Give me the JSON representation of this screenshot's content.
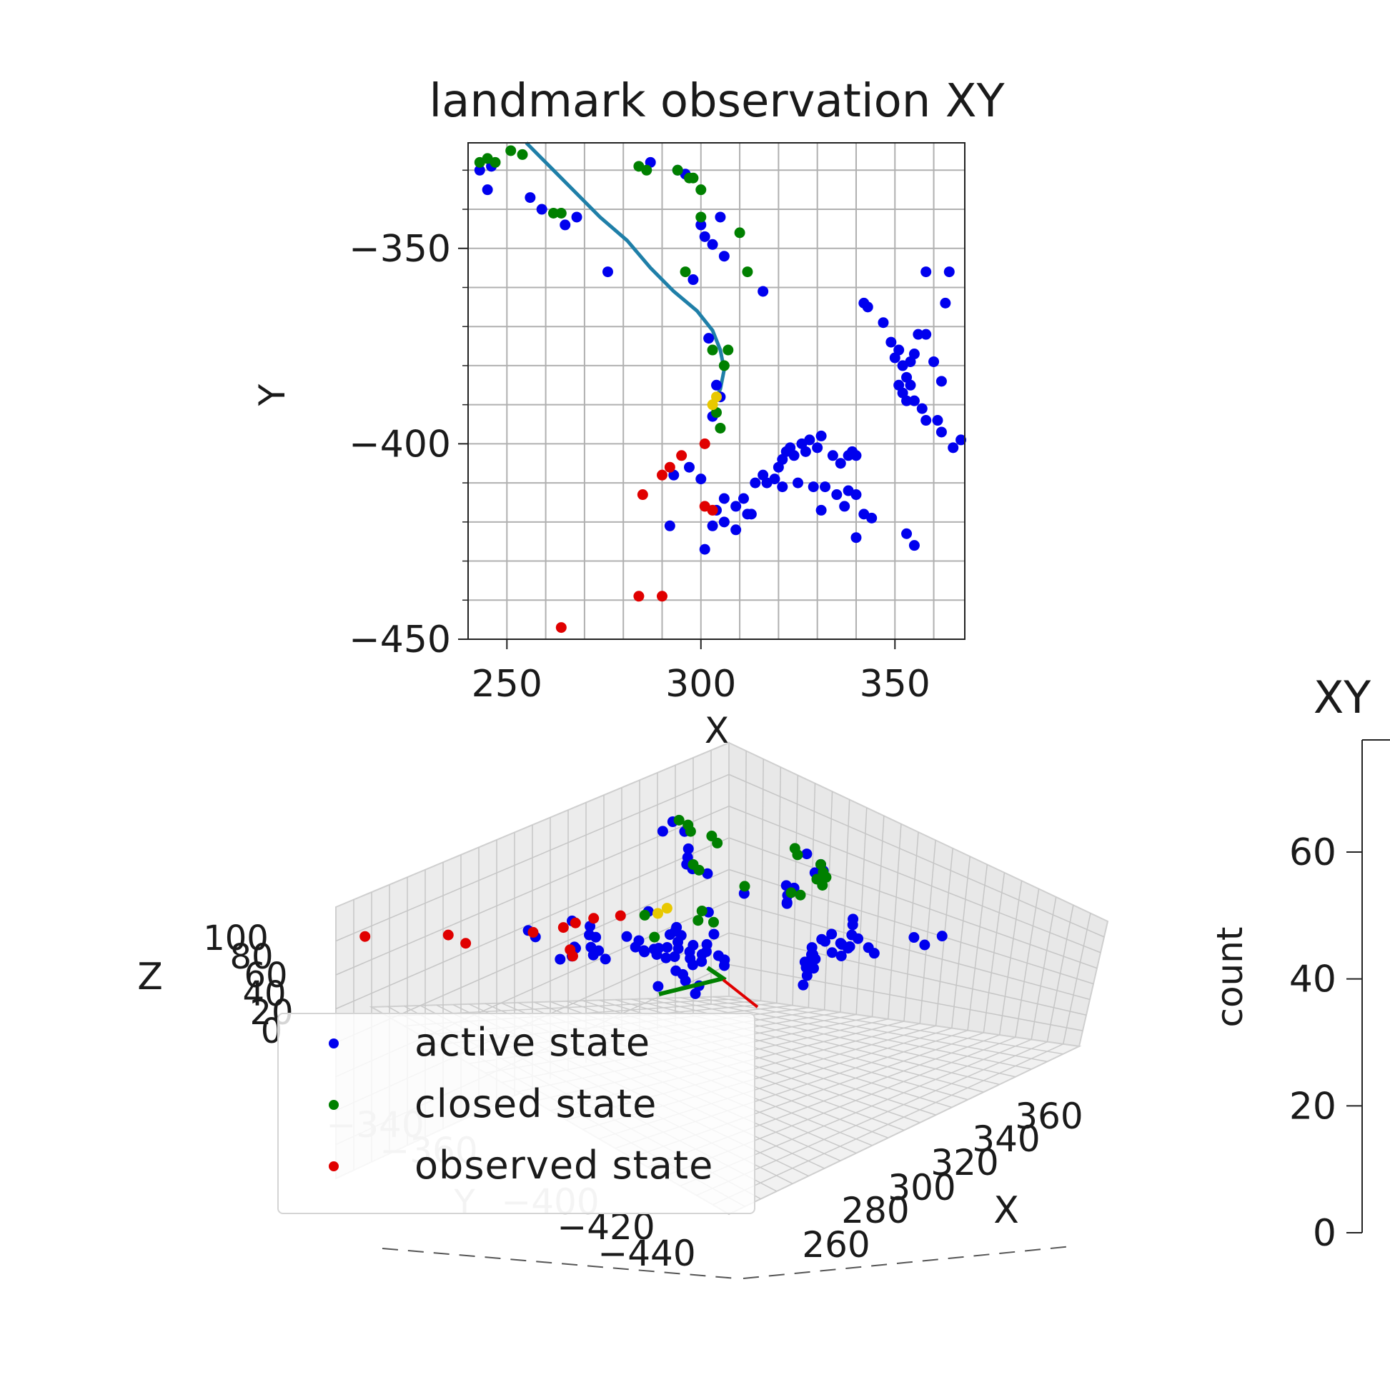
{
  "colors": {
    "active": "#0000ee",
    "closed": "#008000",
    "observed": "#e00000",
    "current": "#e8c800",
    "trajectory": "#1f7fa8",
    "grid": "#b0b0b0"
  },
  "chart_data": [
    {
      "type": "scatter",
      "title": "landmark observation XY",
      "xlabel": "X",
      "ylabel": "Y",
      "xlim": [
        240,
        368
      ],
      "ylim": [
        -450,
        -323
      ],
      "xticks": [
        250,
        300,
        350
      ],
      "yticks": [
        -350,
        -400,
        -450
      ],
      "xtick_labels": [
        "250",
        "300",
        "350"
      ],
      "ytick_labels": [
        "−350",
        "−400",
        "−450"
      ],
      "grid": true,
      "series": [
        {
          "name": "active state",
          "color_key": "active",
          "points": [
            [
              243,
              -330
            ],
            [
              245,
              -335
            ],
            [
              246,
              -329
            ],
            [
              256,
              -337
            ],
            [
              259,
              -340
            ],
            [
              265,
              -344
            ],
            [
              268,
              -342
            ],
            [
              276,
              -356
            ],
            [
              287,
              -328
            ],
            [
              294,
              -330
            ],
            [
              296,
              -331
            ],
            [
              300,
              -344
            ],
            [
              301,
              -347
            ],
            [
              303,
              -349
            ],
            [
              305,
              -342
            ],
            [
              306,
              -352
            ],
            [
              316,
              -361
            ],
            [
              298,
              -358
            ],
            [
              302,
              -373
            ],
            [
              304,
              -385
            ],
            [
              305,
              -388
            ],
            [
              303,
              -393
            ],
            [
              342,
              -364
            ],
            [
              343,
              -365
            ],
            [
              347,
              -369
            ],
            [
              349,
              -374
            ],
            [
              350,
              -378
            ],
            [
              351,
              -376
            ],
            [
              352,
              -380
            ],
            [
              353,
              -383
            ],
            [
              354,
              -379
            ],
            [
              355,
              -377
            ],
            [
              356,
              -372
            ],
            [
              358,
              -372
            ],
            [
              358,
              -356
            ],
            [
              360,
              -379
            ],
            [
              362,
              -384
            ],
            [
              363,
              -364
            ],
            [
              364,
              -356
            ],
            [
              351,
              -385
            ],
            [
              352,
              -387
            ],
            [
              353,
              -389
            ],
            [
              354,
              -385
            ],
            [
              355,
              -389
            ],
            [
              357,
              -391
            ],
            [
              358,
              -394
            ],
            [
              361,
              -394
            ],
            [
              362,
              -397
            ],
            [
              365,
              -401
            ],
            [
              367,
              -399
            ],
            [
              293,
              -408
            ],
            [
              297,
              -406
            ],
            [
              300,
              -409
            ],
            [
              306,
              -414
            ],
            [
              309,
              -416
            ],
            [
              311,
              -414
            ],
            [
              312,
              -418
            ],
            [
              314,
              -410
            ],
            [
              316,
              -408
            ],
            [
              317,
              -410
            ],
            [
              319,
              -409
            ],
            [
              320,
              -406
            ],
            [
              321,
              -404
            ],
            [
              322,
              -402
            ],
            [
              323,
              -401
            ],
            [
              324,
              -403
            ],
            [
              326,
              -400
            ],
            [
              327,
              -402
            ],
            [
              328,
              -399
            ],
            [
              330,
              -401
            ],
            [
              331,
              -398
            ],
            [
              334,
              -403
            ],
            [
              336,
              -405
            ],
            [
              338,
              -403
            ],
            [
              339,
              -402
            ],
            [
              340,
              -403
            ],
            [
              332,
              -411
            ],
            [
              335,
              -413
            ],
            [
              337,
              -416
            ],
            [
              338,
              -412
            ],
            [
              340,
              -413
            ],
            [
              342,
              -418
            ],
            [
              344,
              -419
            ],
            [
              340,
              -424
            ],
            [
              331,
              -417
            ],
            [
              329,
              -411
            ],
            [
              325,
              -410
            ],
            [
              321,
              -411
            ],
            [
              304,
              -417
            ],
            [
              306,
              -420
            ],
            [
              303,
              -421
            ],
            [
              301,
              -427
            ],
            [
              292,
              -421
            ],
            [
              309,
              -422
            ],
            [
              313,
              -418
            ],
            [
              353,
              -423
            ],
            [
              355,
              -426
            ]
          ]
        },
        {
          "name": "closed state",
          "color_key": "closed",
          "points": [
            [
              243,
              -328
            ],
            [
              245,
              -327
            ],
            [
              247,
              -328
            ],
            [
              251,
              -325
            ],
            [
              254,
              -326
            ],
            [
              262,
              -341
            ],
            [
              264,
              -341
            ],
            [
              284,
              -329
            ],
            [
              286,
              -330
            ],
            [
              294,
              -330
            ],
            [
              297,
              -332
            ],
            [
              298,
              -332
            ],
            [
              300,
              -335
            ],
            [
              300,
              -342
            ],
            [
              310,
              -346
            ],
            [
              312,
              -356
            ],
            [
              296,
              -356
            ],
            [
              303,
              -376
            ],
            [
              306,
              -380
            ],
            [
              307,
              -376
            ],
            [
              304,
              -392
            ],
            [
              305,
              -396
            ]
          ]
        },
        {
          "name": "observed state",
          "color_key": "observed",
          "points": [
            [
              301,
              -400
            ],
            [
              295,
              -403
            ],
            [
              292,
              -406
            ],
            [
              290,
              -408
            ],
            [
              285,
              -413
            ],
            [
              301,
              -416
            ],
            [
              303,
              -417
            ],
            [
              284,
              -439
            ],
            [
              290,
              -439
            ],
            [
              264,
              -447
            ]
          ]
        },
        {
          "name": "",
          "color_key": "current",
          "points": [
            [
              304,
              -388
            ],
            [
              303,
              -390
            ]
          ]
        }
      ],
      "trajectory": [
        [
          255,
          -323
        ],
        [
          262,
          -330
        ],
        [
          268,
          -336
        ],
        [
          274,
          -342
        ],
        [
          281,
          -348
        ],
        [
          287,
          -355
        ],
        [
          293,
          -361
        ],
        [
          299,
          -366
        ],
        [
          303,
          -371
        ],
        [
          305,
          -376
        ],
        [
          306,
          -381
        ],
        [
          305,
          -386
        ],
        [
          303,
          -390
        ]
      ]
    },
    {
      "type": "scatter",
      "title": "",
      "xlabel": "X",
      "ylabel": "Y",
      "zlabel": "Z",
      "x_tick_labels": [
        "260",
        "280",
        "300",
        "320",
        "340",
        "360"
      ],
      "y_tick_labels": [
        "−340",
        "−360",
        "−400",
        "−420",
        "−440"
      ],
      "z_tick_labels": [
        "100",
        "80",
        "60",
        "40",
        "20",
        "0"
      ],
      "grid": true,
      "legend": {
        "placement": "lower-left",
        "entries": [
          "active state",
          "closed state",
          "observed state"
        ]
      }
    },
    {
      "type": "bar",
      "title": "XY",
      "ylabel": "count",
      "yticks": [
        0,
        20,
        40,
        60
      ],
      "ytick_labels": [
        "0",
        "20",
        "40",
        "60"
      ]
    }
  ]
}
